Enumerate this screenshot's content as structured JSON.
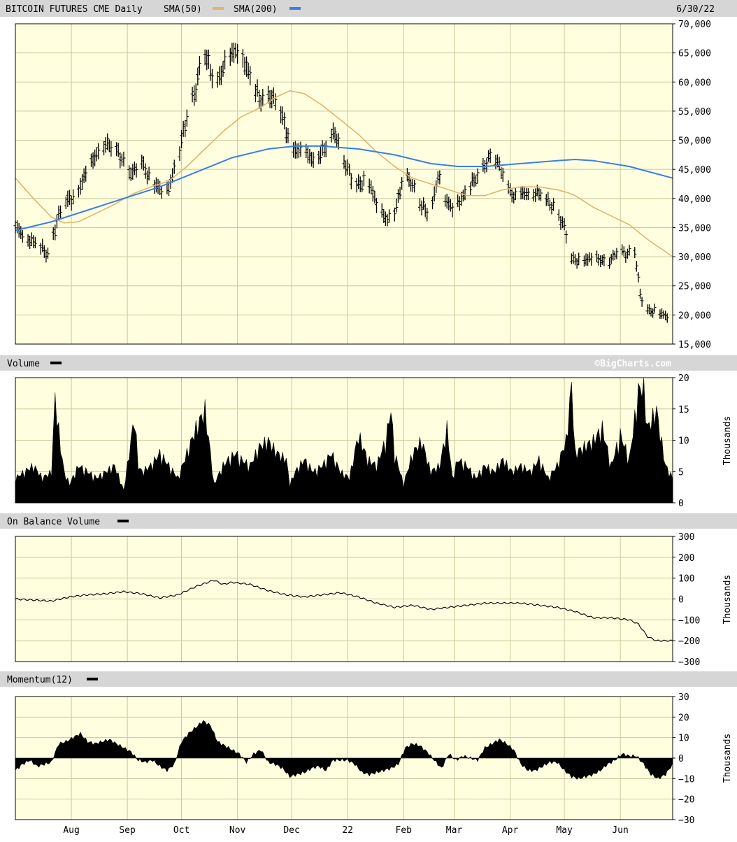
{
  "header": {
    "title": "BITCOIN FUTURES CME Daily",
    "sma50_label": "SMA(50)",
    "sma200_label": "SMA(200)",
    "date": "6/30/22"
  },
  "colors": {
    "plot_bg": "#ffffe0",
    "grid": "#c8c89a",
    "header_bg": "#d6d6d6",
    "price": "#000000",
    "sma50": "#e2b36b",
    "sma200": "#3a7ee8"
  },
  "volume_panel": {
    "label": "Volume",
    "brand": "©BigCharts.com",
    "unit": "Thousands"
  },
  "obv_panel": {
    "label": "On Balance Volume",
    "unit": "Thousands"
  },
  "momentum_panel": {
    "label": "Momentum(12)",
    "unit": "Thousands"
  },
  "x_axis": {
    "labels": [
      {
        "text": "Aug",
        "day": 31
      },
      {
        "text": "Sep",
        "day": 62
      },
      {
        "text": "Oct",
        "day": 92
      },
      {
        "text": "Nov",
        "day": 123
      },
      {
        "text": "Dec",
        "day": 153
      },
      {
        "text": "22",
        "day": 184
      },
      {
        "text": "Feb",
        "day": 215
      },
      {
        "text": "Mar",
        "day": 243
      },
      {
        "text": "Apr",
        "day": 274
      },
      {
        "text": "May",
        "day": 304
      },
      {
        "text": "Jun",
        "day": 335
      }
    ]
  },
  "chart_data": [
    {
      "type": "line",
      "title": "BITCOIN FUTURES CME Daily",
      "subtitle": "",
      "x_unit": "days since 2021-07-01",
      "x_range": [
        0,
        364
      ],
      "ylim": [
        15000,
        70000
      ],
      "yticks": [
        15000,
        20000,
        25000,
        30000,
        35000,
        40000,
        45000,
        50000,
        55000,
        60000,
        65000,
        70000
      ],
      "ytick_labels": [
        "15,000",
        "20,000",
        "25,000",
        "30,000",
        "35,000",
        "40,000",
        "45,000",
        "50,000",
        "55,000",
        "60,000",
        "65,000",
        "70,000"
      ],
      "grid": true,
      "legend": "top-left",
      "series": [
        {
          "name": "Price",
          "style": "ohlc-bars",
          "x": [
            0,
            19,
            21,
            26,
            34,
            43,
            48,
            57,
            65,
            69,
            75,
            83,
            86,
            92,
            95,
            100,
            104,
            108,
            112,
            117,
            124,
            131,
            135,
            141,
            146,
            151,
            153,
            157,
            165,
            172,
            177,
            182,
            188,
            195,
            201,
            206,
            211,
            215,
            219,
            225,
            230,
            234,
            238,
            242,
            247,
            252,
            258,
            264,
            270,
            276,
            283,
            289,
            294,
            299,
            304,
            308,
            312,
            318,
            325,
            330,
            334,
            338,
            343,
            346,
            349,
            355,
            362
          ],
          "y": [
            35000,
            30200,
            34000,
            38700,
            41000,
            46500,
            49800,
            47800,
            44000,
            47000,
            43000,
            40700,
            43000,
            49700,
            54000,
            59000,
            65500,
            62000,
            60500,
            63500,
            66000,
            60000,
            57000,
            57800,
            55500,
            51000,
            49000,
            48000,
            47000,
            48500,
            51500,
            46500,
            42000,
            43500,
            38000,
            36500,
            38500,
            44000,
            43000,
            38500,
            37500,
            44000,
            39500,
            38500,
            40000,
            42000,
            45000,
            47500,
            44500,
            40000,
            41000,
            41000,
            39500,
            38500,
            35000,
            29500,
            29500,
            29500,
            29500,
            29500,
            31000,
            30500,
            31000,
            23500,
            21000,
            20500,
            19500
          ],
          "range_half": [
            1300,
            1200,
            1400,
            1400,
            1500,
            1500,
            1500,
            1400,
            1400,
            1400,
            1400,
            1400,
            1400,
            1600,
            1700,
            1800,
            1800,
            1800,
            1700,
            1800,
            1800,
            1800,
            1700,
            1700,
            1700,
            1600,
            1600,
            1500,
            1500,
            1500,
            1500,
            1400,
            1400,
            1400,
            1400,
            1300,
            1300,
            1300,
            1300,
            1300,
            1300,
            1300,
            1300,
            1300,
            1300,
            1300,
            1300,
            1300,
            1300,
            1200,
            1200,
            1200,
            1200,
            1200,
            1200,
            1100,
            1100,
            1100,
            1100,
            1000,
            1000,
            1000,
            1000,
            1000,
            900,
            900,
            900
          ]
        },
        {
          "name": "SMA(50)",
          "x": [
            0,
            10,
            20,
            27,
            35,
            45,
            55,
            65,
            75,
            85,
            95,
            105,
            115,
            125,
            135,
            145,
            152,
            160,
            170,
            180,
            190,
            200,
            210,
            220,
            230,
            240,
            250,
            260,
            270,
            280,
            290,
            300,
            306,
            310,
            320,
            330,
            340,
            350,
            364
          ],
          "y": [
            43500,
            40000,
            36800,
            35800,
            36000,
            37500,
            39000,
            40800,
            42000,
            43000,
            45500,
            48500,
            51500,
            54000,
            55500,
            57500,
            58500,
            58000,
            56000,
            53500,
            51000,
            48000,
            45500,
            43500,
            42500,
            41500,
            40500,
            40500,
            41500,
            42000,
            42000,
            41500,
            41000,
            40500,
            38500,
            37000,
            35500,
            33000,
            30000
          ]
        },
        {
          "name": "SMA(200)",
          "x": [
            0,
            20,
            40,
            60,
            80,
            100,
            120,
            140,
            155,
            170,
            190,
            210,
            230,
            245,
            260,
            280,
            300,
            310,
            320,
            340,
            364
          ],
          "y": [
            34500,
            36000,
            38000,
            40000,
            42000,
            44500,
            47000,
            48500,
            49000,
            49000,
            48500,
            47500,
            46000,
            45500,
            45500,
            46000,
            46500,
            46700,
            46500,
            45500,
            43500
          ]
        }
      ]
    },
    {
      "type": "area",
      "title": "Volume",
      "ylabel": "Thousands",
      "ylim": [
        0,
        20
      ],
      "yticks": [
        0,
        5,
        10,
        15,
        20
      ],
      "ytick_labels": [
        "0",
        "5",
        "10",
        "15",
        "20"
      ],
      "grid": true,
      "series": [
        {
          "name": "Volume",
          "x": [
            0,
            5,
            10,
            15,
            20,
            22,
            25,
            27,
            30,
            35,
            40,
            45,
            50,
            55,
            60,
            66,
            68,
            70,
            75,
            80,
            85,
            90,
            95,
            100,
            105,
            108,
            110,
            115,
            118,
            122,
            125,
            130,
            135,
            140,
            145,
            150,
            152,
            155,
            160,
            165,
            170,
            175,
            180,
            185,
            190,
            195,
            200,
            205,
            208,
            210,
            215,
            220,
            225,
            230,
            235,
            239,
            242,
            245,
            250,
            255,
            260,
            265,
            270,
            275,
            280,
            285,
            290,
            295,
            300,
            305,
            308,
            310,
            315,
            320,
            325,
            330,
            335,
            340,
            345,
            348,
            350,
            355,
            360,
            364
          ],
          "y": [
            4,
            5,
            6,
            4,
            5,
            17,
            9,
            5,
            3,
            6,
            5,
            4,
            5,
            6,
            2,
            14,
            6,
            5,
            6,
            8,
            6,
            4,
            8,
            12,
            15,
            8,
            3,
            6,
            7,
            8,
            7,
            6,
            9,
            10,
            8,
            7,
            3,
            5,
            7,
            5,
            6,
            8,
            5,
            4,
            11,
            7,
            6,
            10,
            15,
            8,
            3,
            8,
            10,
            5,
            6,
            12,
            4,
            7,
            6,
            4,
            6,
            5,
            7,
            5,
            6,
            5,
            7,
            4,
            6,
            10,
            19,
            8,
            9,
            10,
            12,
            6,
            11,
            7,
            18,
            19,
            12,
            15,
            6,
            4
          ]
        }
      ]
    },
    {
      "type": "line",
      "title": "On Balance Volume",
      "ylabel": "Thousands",
      "ylim": [
        -300,
        300
      ],
      "yticks": [
        -300,
        -200,
        -100,
        0,
        100,
        200,
        300
      ],
      "ytick_labels": [
        "−300",
        "−200",
        "−100",
        "0",
        "100",
        "200",
        "300"
      ],
      "grid": true,
      "series": [
        {
          "name": "On Balance Volume",
          "x": [
            0,
            10,
            20,
            25,
            30,
            40,
            50,
            60,
            70,
            80,
            90,
            100,
            110,
            115,
            120,
            130,
            140,
            150,
            160,
            170,
            180,
            190,
            200,
            210,
            220,
            230,
            240,
            250,
            260,
            270,
            280,
            290,
            300,
            310,
            320,
            330,
            340,
            345,
            350,
            355,
            364
          ],
          "y": [
            0,
            -5,
            -10,
            0,
            10,
            20,
            25,
            35,
            25,
            5,
            20,
            60,
            90,
            70,
            80,
            70,
            40,
            20,
            10,
            20,
            30,
            10,
            -20,
            -40,
            -30,
            -50,
            -40,
            -30,
            -20,
            -20,
            -20,
            -30,
            -40,
            -60,
            -90,
            -90,
            -100,
            -120,
            -180,
            -200,
            -200
          ]
        }
      ]
    },
    {
      "type": "area",
      "title": "Momentum(12)",
      "ylabel": "Thousands",
      "ylim": [
        -30,
        30
      ],
      "yticks": [
        -30,
        -20,
        -10,
        0,
        10,
        20,
        30
      ],
      "ytick_labels": [
        "−30",
        "−20",
        "−10",
        "0",
        "10",
        "20",
        "30"
      ],
      "grid": true,
      "series": [
        {
          "name": "Momentum",
          "x": [
            0,
            4,
            8,
            12,
            16,
            20,
            24,
            28,
            32,
            36,
            40,
            44,
            48,
            52,
            56,
            60,
            64,
            68,
            72,
            76,
            80,
            84,
            88,
            92,
            96,
            100,
            104,
            108,
            112,
            116,
            120,
            124,
            128,
            132,
            136,
            140,
            144,
            148,
            152,
            156,
            160,
            164,
            168,
            172,
            176,
            180,
            184,
            188,
            192,
            196,
            200,
            204,
            208,
            212,
            216,
            220,
            224,
            228,
            232,
            236,
            240,
            244,
            248,
            252,
            256,
            260,
            264,
            268,
            272,
            276,
            280,
            284,
            288,
            292,
            296,
            300,
            304,
            308,
            312,
            316,
            320,
            324,
            328,
            332,
            336,
            340,
            344,
            348,
            352,
            356,
            360,
            364
          ],
          "y": [
            -6,
            -3,
            -1,
            -4,
            -3,
            -2,
            7,
            8,
            10,
            12,
            8,
            7,
            8,
            9,
            7,
            5,
            3,
            -1,
            -2,
            -1,
            -4,
            -6,
            -3,
            8,
            12,
            15,
            18,
            16,
            8,
            6,
            4,
            2,
            -2,
            2,
            4,
            -2,
            -3,
            -5,
            -9,
            -8,
            -7,
            -5,
            -4,
            -6,
            -1,
            -1,
            -1,
            -3,
            -7,
            -8,
            -7,
            -6,
            -5,
            -3,
            5,
            7,
            6,
            3,
            -1,
            -5,
            2,
            -1,
            1,
            0,
            -1,
            5,
            7,
            9,
            7,
            4,
            -3,
            -6,
            -6,
            -4,
            -2,
            -2,
            -6,
            -9,
            -10,
            -9,
            -8,
            -6,
            -3,
            -1,
            2,
            1,
            1,
            -3,
            -8,
            -10,
            -8,
            -3
          ]
        }
      ]
    }
  ]
}
